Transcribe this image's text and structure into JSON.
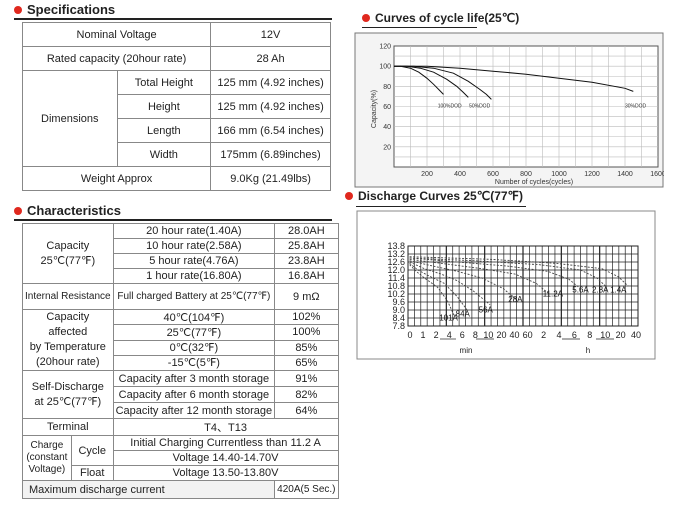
{
  "specifications": {
    "title": "Specifications",
    "nominal_voltage": {
      "label": "Nominal Voltage",
      "value": "12V"
    },
    "rated_capacity": {
      "label": "Rated capacity (20hour rate)",
      "value": "28 Ah"
    },
    "dimensions": {
      "label": "Dimensions",
      "rows": [
        {
          "label": "Total Height",
          "value": "125 mm (4.92 inches)"
        },
        {
          "label": "Height",
          "value": "125 mm (4.92 inches)"
        },
        {
          "label": "Length",
          "value": "166 mm (6.54 inches)"
        },
        {
          "label": "Width",
          "value": "175mm (6.89inches)"
        }
      ]
    },
    "weight": {
      "label": "Weight Approx",
      "value": "9.0Kg (21.49lbs)"
    }
  },
  "characteristics": {
    "title": "Characteristics",
    "capacity": {
      "label_1": "Capacity",
      "label_2": "25℃(77℉)",
      "rows": [
        {
          "rate": "20 hour rate(1.40A)",
          "value": "28.0AH"
        },
        {
          "rate": "10 hour rate(2.58A)",
          "value": "25.8AH"
        },
        {
          "rate": "5 hour rate(4.76A)",
          "value": "23.8AH"
        },
        {
          "rate": "1 hour rate(16.80A)",
          "value": "16.8AH"
        }
      ]
    },
    "internal_resistance": {
      "label": "Internal Resistance",
      "condition": "Full charged Battery at 25℃(77℉)",
      "value": "9 mΩ"
    },
    "capacity_temp": {
      "label_lines": [
        "Capacity",
        "affected",
        "by Temperature",
        "(20hour rate)"
      ],
      "rows": [
        {
          "temp": "40℃(104℉)",
          "value": "102%"
        },
        {
          "temp": "25℃(77℉)",
          "value": "100%"
        },
        {
          "temp": "0℃(32℉)",
          "value": "85%"
        },
        {
          "temp": "-15℃(5℉)",
          "value": "65%"
        }
      ]
    },
    "self_discharge": {
      "label_lines": [
        "Self-Discharge",
        "at 25℃(77℉)"
      ],
      "rows": [
        {
          "condition": "Capacity after 3 month storage",
          "value": "91%"
        },
        {
          "condition": "Capacity after 6 month storage",
          "value": "82%"
        },
        {
          "condition": "Capacity after 12 month storage",
          "value": "64%"
        }
      ]
    },
    "terminal": {
      "label": "Terminal",
      "value": "T4、T13"
    },
    "charge": {
      "label_lines": [
        "Charge",
        "(constant",
        "Voltage)"
      ],
      "cycle": {
        "label": "Cycle",
        "line_1": "Initial Charging Currentless than 11.2 A",
        "line_2": "Voltage 14.40-14.70V"
      },
      "float": {
        "label": "Float",
        "value": "Voltage 13.50-13.80V"
      }
    },
    "max_discharge": {
      "label": "Maximum discharge current",
      "value": "420A(5 Sec.)"
    }
  },
  "chart_data": [
    {
      "type": "line",
      "title": "Curves of cycle life(25℃)",
      "xlabel": "Number of cycles(cycles)",
      "ylabel": "Capacity(%)",
      "xlim": [
        0,
        1600
      ],
      "ylim": [
        0,
        120
      ],
      "x_ticks": [
        "200",
        "400",
        "600",
        "800",
        "1000",
        "1200",
        "1400",
        "1600"
      ],
      "y_ticks": [
        "120",
        "100",
        "80",
        "60",
        "40",
        "20"
      ],
      "grid": true,
      "annotations": [
        "100%DOD",
        "50%DOD",
        "30%DOD"
      ],
      "series": [
        {
          "points": [
            [
              0,
              100
            ],
            [
              40,
              100
            ],
            [
              100,
              98
            ],
            [
              150,
              94
            ],
            [
              200,
              88
            ],
            [
              240,
              82
            ],
            [
              270,
              77
            ],
            [
              300,
              72
            ]
          ]
        },
        {
          "points": [
            [
              0,
              100
            ],
            [
              80,
              100
            ],
            [
              160,
              98
            ],
            [
              240,
              94
            ],
            [
              320,
              87
            ],
            [
              380,
              80
            ],
            [
              420,
              74
            ],
            [
              450,
              69
            ]
          ]
        },
        {
          "points": [
            [
              0,
              100
            ],
            [
              120,
              100
            ],
            [
              240,
              98
            ],
            [
              360,
              93
            ],
            [
              450,
              85
            ],
            [
              520,
              77
            ],
            [
              560,
              72
            ],
            [
              590,
              67
            ]
          ]
        },
        {
          "points": [
            [
              0,
              100
            ],
            [
              200,
              100
            ],
            [
              400,
              98
            ],
            [
              600,
              95
            ],
            [
              800,
              92
            ],
            [
              1000,
              88
            ],
            [
              1200,
              84
            ],
            [
              1400,
              78
            ],
            [
              1450,
              75
            ]
          ]
        }
      ]
    },
    {
      "type": "line",
      "title": "Discharge Curves 25℃(77℉)",
      "ylim": [
        7.8,
        13.8
      ],
      "y_ticks": [
        "13.8",
        "13.2",
        "12.6",
        "12.0",
        "11.4",
        "10.8",
        "10.2",
        "9.6",
        "9.0",
        "8.4",
        "7.8"
      ],
      "x_ticks_min": [
        "0",
        "1",
        "2",
        "4",
        "6",
        "8",
        "10",
        "20",
        "40",
        "60"
      ],
      "x_ticks_h": [
        "2",
        "4",
        "6",
        "8",
        "10",
        "20",
        "40"
      ],
      "x_unit_min": "min",
      "x_unit_h": "h",
      "grid": true,
      "annotations": [
        "101A",
        "84A",
        "56A",
        "28A",
        "11.2A",
        "5.6A",
        "2.8A",
        "1.4A"
      ],
      "series": [
        {
          "name": "101A",
          "points": [
            [
              0.1,
              12.4
            ],
            [
              0.5,
              11.9
            ],
            [
              1.0,
              11.4
            ],
            [
              1.8,
              10.7
            ],
            [
              2.4,
              9.7
            ],
            [
              2.8,
              8.6
            ]
          ]
        },
        {
          "name": "84A",
          "points": [
            [
              0.1,
              12.5
            ],
            [
              0.6,
              12.0
            ],
            [
              1.2,
              11.6
            ],
            [
              2.2,
              11.0
            ],
            [
              3.0,
              10.0
            ],
            [
              3.6,
              9.0
            ]
          ]
        },
        {
          "name": "56A",
          "points": [
            [
              0.1,
              12.6
            ],
            [
              1.0,
              12.1
            ],
            [
              2.0,
              11.7
            ],
            [
              3.0,
              11.2
            ],
            [
              4.0,
              10.4
            ],
            [
              5.0,
              9.4
            ]
          ]
        },
        {
          "name": "28A",
          "points": [
            [
              0.1,
              12.7
            ],
            [
              1.5,
              12.3
            ],
            [
              3.0,
              11.9
            ],
            [
              4.5,
              11.4
            ],
            [
              5.8,
              10.6
            ],
            [
              6.6,
              9.8
            ]
          ]
        },
        {
          "name": "11.2A",
          "points": [
            [
              0.1,
              12.8
            ],
            [
              2.0,
              12.5
            ],
            [
              4.5,
              12.1
            ],
            [
              6.5,
              11.7
            ],
            [
              7.8,
              11.0
            ],
            [
              8.6,
              10.2
            ]
          ]
        },
        {
          "name": "5.6A",
          "points": [
            [
              0.1,
              12.9
            ],
            [
              3.0,
              12.6
            ],
            [
              6.0,
              12.3
            ],
            [
              8.5,
              11.9
            ],
            [
              9.8,
              11.3
            ],
            [
              10.5,
              10.6
            ]
          ]
        },
        {
          "name": "2.8A",
          "points": [
            [
              0.1,
              12.9
            ],
            [
              4.0,
              12.7
            ],
            [
              8.0,
              12.4
            ],
            [
              10.5,
              12.0
            ],
            [
              11.5,
              11.4
            ],
            [
              12.1,
              10.7
            ]
          ]
        },
        {
          "name": "1.4A",
          "points": [
            [
              0.1,
              13.0
            ],
            [
              5.0,
              12.8
            ],
            [
              9.0,
              12.5
            ],
            [
              11.8,
              12.1
            ],
            [
              12.8,
              11.5
            ],
            [
              13.4,
              10.8
            ]
          ]
        }
      ]
    }
  ]
}
